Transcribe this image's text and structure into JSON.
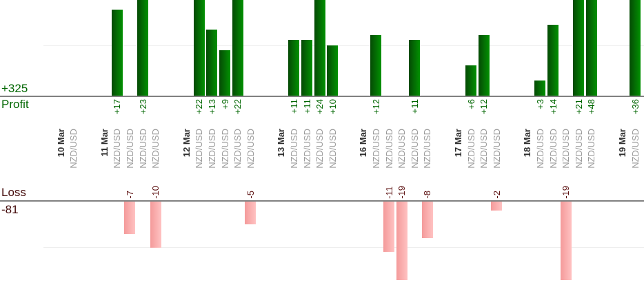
{
  "sections": {
    "profit": {
      "label": "Profit",
      "total": "+325"
    },
    "loss": {
      "label": "Loss",
      "total": "-81"
    }
  },
  "theme": {
    "profit_text": "#006600",
    "loss_text": "#420808",
    "loss_value_text": "#5a0d0d",
    "bar_green_dark": "#054a05",
    "bar_green_light": "#029102",
    "bar_pink_dark": "#f49a9a",
    "bar_pink_light": "#ffc2c2",
    "axis_line": "#808080",
    "gridline": "#ededed",
    "date_label": "#2e2e2e",
    "symbol_label": "#9a9a9a"
  },
  "chart_data": {
    "type": "bar",
    "orientation": "vertical",
    "symbol_label": "NZD/USD",
    "profit_total": 325,
    "loss_total": -81,
    "profit_gridline_value": 10,
    "loss_gridline_value": -10,
    "groups": [
      {
        "date": "10 Mar",
        "trades": [
          0
        ]
      },
      {
        "date": "11 Mar",
        "trades": [
          17,
          -7,
          23,
          -10
        ]
      },
      {
        "date": "12 Mar",
        "trades": [
          22,
          13,
          9,
          22,
          -5
        ]
      },
      {
        "date": "13 Mar",
        "trades": [
          11,
          11,
          24,
          10
        ]
      },
      {
        "date": "16 Mar",
        "trades": [
          12,
          -11,
          -19,
          11,
          -8
        ]
      },
      {
        "date": "17 Mar",
        "trades": [
          6,
          12,
          -2
        ]
      },
      {
        "date": "18 Mar",
        "trades": [
          3,
          14,
          -19,
          21,
          48
        ]
      },
      {
        "date": "19 Mar",
        "trades": [
          36
        ]
      }
    ]
  }
}
